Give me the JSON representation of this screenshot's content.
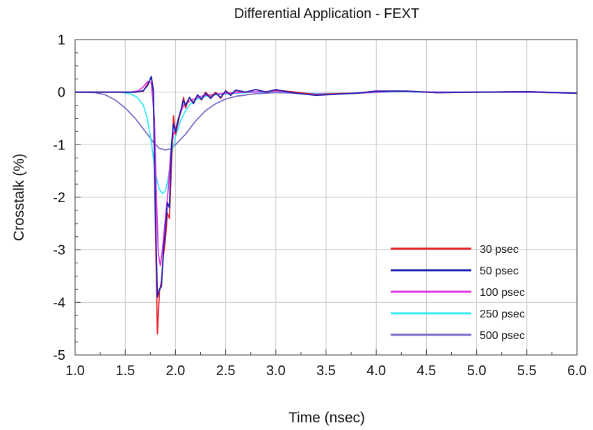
{
  "chart_data": {
    "type": "line",
    "title": "Differential Application - FEXT",
    "xlabel": "Time (nsec)",
    "ylabel": "Crosstalk (%)",
    "xlim": [
      1.0,
      6.0
    ],
    "ylim": [
      -5,
      1
    ],
    "x_ticks": [
      "1.0",
      "1.5",
      "2.0",
      "2.5",
      "3.0",
      "3.5",
      "4.0",
      "4.5",
      "5.0",
      "5.5",
      "6.0"
    ],
    "y_ticks": [
      "1",
      "0",
      "-1",
      "-2",
      "-3",
      "-4",
      "-5"
    ],
    "grid": true,
    "legend_position": "bottom-right",
    "series": [
      {
        "name": "30 psec",
        "color": "#e8242a",
        "points": [
          [
            1.0,
            0
          ],
          [
            1.6,
            0
          ],
          [
            1.68,
            0.02
          ],
          [
            1.72,
            0.15
          ],
          [
            1.76,
            0.28
          ],
          [
            1.78,
            0.05
          ],
          [
            1.8,
            -2.5
          ],
          [
            1.82,
            -4.6
          ],
          [
            1.84,
            -3.8
          ],
          [
            1.86,
            -3.6
          ],
          [
            1.88,
            -3.1
          ],
          [
            1.9,
            -2.8
          ],
          [
            1.92,
            -2.3
          ],
          [
            1.94,
            -2.4
          ],
          [
            1.96,
            -1.4
          ],
          [
            1.98,
            -0.45
          ],
          [
            2.0,
            -0.8
          ],
          [
            2.03,
            -0.55
          ],
          [
            2.06,
            -0.3
          ],
          [
            2.08,
            -0.1
          ],
          [
            2.1,
            -0.3
          ],
          [
            2.14,
            -0.1
          ],
          [
            2.18,
            -0.2
          ],
          [
            2.22,
            -0.05
          ],
          [
            2.26,
            -0.15
          ],
          [
            2.3,
            0.0
          ],
          [
            2.35,
            -0.1
          ],
          [
            2.4,
            0.0
          ],
          [
            2.45,
            -0.12
          ],
          [
            2.5,
            0.03
          ],
          [
            2.55,
            -0.05
          ],
          [
            2.6,
            0.03
          ],
          [
            2.7,
            0.0
          ],
          [
            2.8,
            0.05
          ],
          [
            2.9,
            0.0
          ],
          [
            3.0,
            0.04
          ],
          [
            3.1,
            0.02
          ],
          [
            3.2,
            0.0
          ],
          [
            3.4,
            -0.05
          ],
          [
            3.6,
            -0.03
          ],
          [
            3.8,
            -0.02
          ],
          [
            4.0,
            0.02
          ],
          [
            4.3,
            0.02
          ],
          [
            4.6,
            -0.01
          ],
          [
            5.0,
            0.0
          ],
          [
            5.5,
            0.01
          ],
          [
            6.0,
            -0.02
          ]
        ]
      },
      {
        "name": "50 psec",
        "color": "#1a22b8",
        "points": [
          [
            1.0,
            0
          ],
          [
            1.6,
            0
          ],
          [
            1.68,
            0.03
          ],
          [
            1.72,
            0.12
          ],
          [
            1.76,
            0.3
          ],
          [
            1.78,
            0.0
          ],
          [
            1.8,
            -2.2
          ],
          [
            1.82,
            -3.9
          ],
          [
            1.84,
            -3.75
          ],
          [
            1.86,
            -3.7
          ],
          [
            1.88,
            -3.0
          ],
          [
            1.9,
            -2.6
          ],
          [
            1.92,
            -2.1
          ],
          [
            1.94,
            -2.2
          ],
          [
            1.96,
            -1.0
          ],
          [
            1.98,
            -0.6
          ],
          [
            2.0,
            -0.75
          ],
          [
            2.03,
            -0.5
          ],
          [
            2.06,
            -0.3
          ],
          [
            2.08,
            -0.15
          ],
          [
            2.1,
            -0.25
          ],
          [
            2.14,
            -0.1
          ],
          [
            2.18,
            -0.22
          ],
          [
            2.22,
            -0.05
          ],
          [
            2.26,
            -0.14
          ],
          [
            2.3,
            -0.02
          ],
          [
            2.35,
            -0.12
          ],
          [
            2.4,
            -0.02
          ],
          [
            2.45,
            -0.1
          ],
          [
            2.5,
            0.02
          ],
          [
            2.55,
            -0.06
          ],
          [
            2.6,
            0.04
          ],
          [
            2.7,
            0.0
          ],
          [
            2.8,
            0.05
          ],
          [
            2.9,
            0.0
          ],
          [
            3.0,
            0.05
          ],
          [
            3.1,
            0.01
          ],
          [
            3.2,
            -0.02
          ],
          [
            3.4,
            -0.06
          ],
          [
            3.6,
            -0.04
          ],
          [
            3.8,
            -0.02
          ],
          [
            4.0,
            0.02
          ],
          [
            4.3,
            0.02
          ],
          [
            4.6,
            -0.01
          ],
          [
            5.0,
            0.0
          ],
          [
            5.5,
            0.01
          ],
          [
            6.0,
            -0.02
          ]
        ]
      },
      {
        "name": "100 psec",
        "color": "#e233e0",
        "points": [
          [
            1.0,
            0
          ],
          [
            1.55,
            0
          ],
          [
            1.62,
            0.02
          ],
          [
            1.68,
            0.1
          ],
          [
            1.72,
            0.2
          ],
          [
            1.76,
            0.18
          ],
          [
            1.79,
            -0.5
          ],
          [
            1.81,
            -2.0
          ],
          [
            1.83,
            -3.1
          ],
          [
            1.85,
            -3.3
          ],
          [
            1.87,
            -3.0
          ],
          [
            1.89,
            -2.6
          ],
          [
            1.91,
            -2.2
          ],
          [
            1.93,
            -1.8
          ],
          [
            1.95,
            -1.2
          ],
          [
            1.98,
            -0.8
          ],
          [
            2.0,
            -0.7
          ],
          [
            2.04,
            -0.45
          ],
          [
            2.08,
            -0.25
          ],
          [
            2.12,
            -0.2
          ],
          [
            2.16,
            -0.15
          ],
          [
            2.2,
            -0.12
          ],
          [
            2.25,
            -0.08
          ],
          [
            2.3,
            -0.06
          ],
          [
            2.4,
            -0.04
          ],
          [
            2.5,
            -0.02
          ],
          [
            2.7,
            0.0
          ],
          [
            3.0,
            0.02
          ],
          [
            3.4,
            -0.04
          ],
          [
            3.8,
            -0.02
          ],
          [
            4.2,
            0.02
          ],
          [
            4.6,
            0.0
          ],
          [
            5.0,
            0.0
          ],
          [
            5.5,
            0.0
          ],
          [
            6.0,
            -0.02
          ]
        ]
      },
      {
        "name": "250 psec",
        "color": "#38e8f4",
        "points": [
          [
            1.0,
            0
          ],
          [
            1.45,
            0
          ],
          [
            1.55,
            -0.03
          ],
          [
            1.62,
            -0.1
          ],
          [
            1.68,
            -0.25
          ],
          [
            1.72,
            -0.5
          ],
          [
            1.76,
            -0.95
          ],
          [
            1.8,
            -1.55
          ],
          [
            1.84,
            -1.85
          ],
          [
            1.87,
            -1.93
          ],
          [
            1.9,
            -1.88
          ],
          [
            1.93,
            -1.6
          ],
          [
            1.96,
            -1.2
          ],
          [
            2.0,
            -0.85
          ],
          [
            2.05,
            -0.55
          ],
          [
            2.1,
            -0.35
          ],
          [
            2.15,
            -0.22
          ],
          [
            2.2,
            -0.15
          ],
          [
            2.3,
            -0.08
          ],
          [
            2.4,
            -0.05
          ],
          [
            2.6,
            -0.02
          ],
          [
            2.8,
            0.0
          ],
          [
            3.0,
            0.01
          ],
          [
            3.4,
            -0.03
          ],
          [
            3.8,
            -0.02
          ],
          [
            4.2,
            0.01
          ],
          [
            4.6,
            0.0
          ],
          [
            5.0,
            0.0
          ],
          [
            5.5,
            0.0
          ],
          [
            6.0,
            -0.02
          ]
        ]
      },
      {
        "name": "500 psec",
        "color": "#7a6cc8",
        "points": [
          [
            1.0,
            0
          ],
          [
            1.2,
            -0.01
          ],
          [
            1.3,
            -0.05
          ],
          [
            1.4,
            -0.15
          ],
          [
            1.5,
            -0.3
          ],
          [
            1.6,
            -0.5
          ],
          [
            1.7,
            -0.75
          ],
          [
            1.78,
            -0.95
          ],
          [
            1.84,
            -1.07
          ],
          [
            1.9,
            -1.1
          ],
          [
            1.95,
            -1.08
          ],
          [
            2.0,
            -1.0
          ],
          [
            2.1,
            -0.8
          ],
          [
            2.2,
            -0.55
          ],
          [
            2.3,
            -0.35
          ],
          [
            2.4,
            -0.22
          ],
          [
            2.5,
            -0.13
          ],
          [
            2.6,
            -0.08
          ],
          [
            2.8,
            -0.03
          ],
          [
            3.0,
            -0.01
          ],
          [
            3.4,
            -0.03
          ],
          [
            3.8,
            -0.02
          ],
          [
            4.2,
            0.01
          ],
          [
            4.6,
            0.0
          ],
          [
            5.0,
            0.0
          ],
          [
            5.5,
            0.0
          ],
          [
            6.0,
            -0.02
          ]
        ]
      }
    ]
  }
}
